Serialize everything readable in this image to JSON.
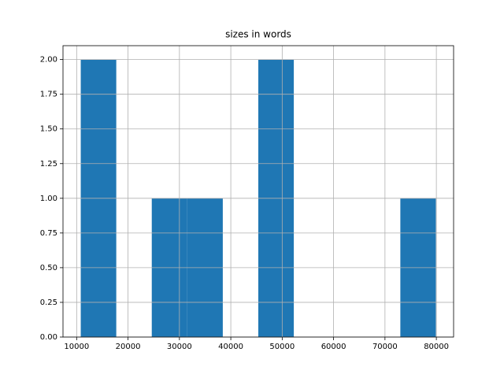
{
  "chart_data": {
    "type": "histogram",
    "title": "sizes in words",
    "bins": [
      10800,
      17710,
      24620,
      31530,
      38440,
      45350,
      52260,
      59170,
      66080,
      72990,
      79900
    ],
    "counts": [
      2,
      0,
      1,
      1,
      0,
      2,
      0,
      0,
      0,
      1
    ],
    "color": "#1f77b4",
    "xlim": [
      7345,
      83355
    ],
    "xticks": [
      10000,
      20000,
      30000,
      40000,
      50000,
      60000,
      70000,
      80000
    ],
    "ylim": [
      0,
      2.1
    ],
    "yticks": [
      {
        "value": 0,
        "label": "0.00"
      },
      {
        "value": 0.25,
        "label": "0.25"
      },
      {
        "value": 0.5,
        "label": "0.50"
      },
      {
        "value": 0.75,
        "label": "0.75"
      },
      {
        "value": 1,
        "label": "1.00"
      },
      {
        "value": 1.25,
        "label": "1.25"
      },
      {
        "value": 1.5,
        "label": "1.50"
      },
      {
        "value": 1.75,
        "label": "1.75"
      },
      {
        "value": 2,
        "label": "2.00"
      }
    ],
    "grid": true
  }
}
